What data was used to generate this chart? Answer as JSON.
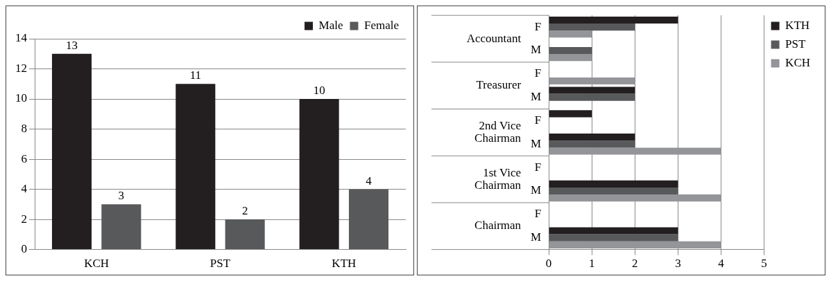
{
  "chart_data": [
    {
      "type": "bar",
      "categories": [
        "KCH",
        "PST",
        "KTH"
      ],
      "series": [
        {
          "name": "Male",
          "color": "#231f20",
          "values": [
            13,
            11,
            10
          ]
        },
        {
          "name": "Female",
          "color": "#58595b",
          "values": [
            3,
            2,
            4
          ]
        }
      ],
      "ylim": [
        0,
        14
      ],
      "yticks": [
        0,
        2,
        4,
        6,
        8,
        10,
        12,
        14
      ],
      "grid": "y",
      "legend": "top right",
      "data_labels": true
    },
    {
      "type": "bar",
      "orientation": "horizontal",
      "categories": [
        "F",
        "M",
        "F",
        "M",
        "F",
        "M",
        "F",
        "M",
        "F",
        "M"
      ],
      "series": [
        {
          "name": "KTH",
          "color": "#231f20",
          "values": [
            3,
            0,
            0,
            2,
            1,
            2,
            0,
            3,
            0,
            3
          ]
        },
        {
          "name": "PST",
          "color": "#58595b",
          "values": [
            2,
            1,
            0,
            2,
            0,
            2,
            0,
            3,
            0,
            3
          ]
        },
        {
          "name": "KCH",
          "color": "#939598",
          "values": [
            1,
            1,
            2,
            0,
            0,
            4,
            0,
            4,
            0,
            4
          ]
        }
      ],
      "xlim": [
        0,
        5
      ],
      "xticks": [
        0,
        1,
        2,
        3,
        4,
        5
      ],
      "grid": "x",
      "legend": "right",
      "annotations": [
        "Accountant",
        "Treasurer",
        "2nd Vice Chairman",
        "1st Vice Chairman",
        "Chairman"
      ]
    }
  ]
}
